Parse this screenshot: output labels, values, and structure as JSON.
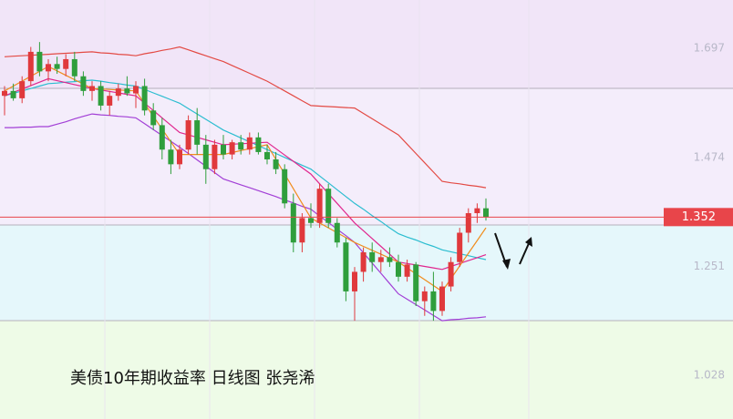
{
  "chart_data": {
    "type": "candlestick",
    "title": "美债10年期收益率 日线图 张尧浠",
    "categories": [
      null,
      null,
      null,
      null,
      null,
      null,
      null,
      null,
      null,
      null,
      null,
      null,
      null,
      null,
      null,
      null,
      null,
      null,
      null,
      null,
      null,
      null,
      null,
      null,
      null,
      null,
      null,
      null,
      null,
      null,
      null,
      null,
      null,
      null,
      null,
      null,
      null,
      null,
      null,
      null,
      null,
      null,
      null,
      null,
      null,
      null,
      null,
      null,
      null,
      null,
      null,
      null,
      null,
      null,
      null,
      null
    ],
    "open": [
      1.6,
      1.61,
      1.595,
      1.63,
      1.69,
      1.65,
      1.665,
      1.655,
      1.675,
      1.64,
      1.61,
      1.62,
      1.58,
      1.6,
      1.615,
      1.605,
      1.62,
      1.57,
      1.54,
      1.49,
      1.46,
      1.49,
      1.55,
      1.5,
      1.45,
      1.5,
      1.48,
      1.505,
      1.49,
      1.515,
      1.485,
      1.47,
      1.45,
      1.38,
      1.3,
      1.35,
      1.34,
      1.41,
      1.34,
      1.3,
      1.2,
      1.24,
      1.28,
      1.26,
      1.27,
      1.26,
      1.23,
      1.255,
      1.18,
      1.2,
      1.16,
      1.21,
      1.26,
      1.32,
      1.36,
      1.37
    ],
    "high": [
      1.62,
      1.625,
      1.64,
      1.7,
      1.71,
      1.675,
      1.68,
      1.685,
      1.69,
      1.65,
      1.63,
      1.63,
      1.61,
      1.625,
      1.64,
      1.63,
      1.635,
      1.585,
      1.555,
      1.51,
      1.5,
      1.56,
      1.575,
      1.52,
      1.51,
      1.52,
      1.51,
      1.52,
      1.525,
      1.525,
      1.5,
      1.485,
      1.46,
      1.4,
      1.36,
      1.38,
      1.42,
      1.42,
      1.35,
      1.31,
      1.25,
      1.29,
      1.3,
      1.285,
      1.29,
      1.275,
      1.265,
      1.26,
      1.21,
      1.24,
      1.22,
      1.27,
      1.33,
      1.37,
      1.38,
      1.39
    ],
    "low": [
      1.56,
      1.59,
      1.585,
      1.62,
      1.64,
      1.63,
      1.645,
      1.64,
      1.63,
      1.6,
      1.59,
      1.57,
      1.56,
      1.59,
      1.6,
      1.575,
      1.56,
      1.53,
      1.47,
      1.44,
      1.45,
      1.48,
      1.48,
      1.42,
      1.44,
      1.47,
      1.47,
      1.48,
      1.48,
      1.48,
      1.46,
      1.44,
      1.37,
      1.28,
      1.28,
      1.33,
      1.33,
      1.33,
      1.29,
      1.18,
      1.14,
      1.22,
      1.24,
      1.24,
      1.25,
      1.22,
      1.22,
      1.17,
      1.15,
      1.14,
      1.15,
      1.2,
      1.25,
      1.3,
      1.34,
      1.345
    ],
    "close": [
      1.61,
      1.595,
      1.63,
      1.69,
      1.65,
      1.665,
      1.655,
      1.675,
      1.64,
      1.61,
      1.62,
      1.58,
      1.6,
      1.615,
      1.605,
      1.62,
      1.57,
      1.54,
      1.49,
      1.46,
      1.49,
      1.55,
      1.5,
      1.45,
      1.5,
      1.48,
      1.505,
      1.49,
      1.515,
      1.485,
      1.47,
      1.45,
      1.38,
      1.3,
      1.35,
      1.34,
      1.41,
      1.34,
      1.3,
      1.2,
      1.24,
      1.28,
      1.26,
      1.27,
      1.26,
      1.23,
      1.255,
      1.18,
      1.2,
      1.16,
      1.21,
      1.26,
      1.32,
      1.36,
      1.37,
      1.352
    ],
    "up_color": "#e0393c",
    "down_color": "#2f9e3c",
    "series": [
      {
        "color": "#e34a44",
        "values": [
          1.68,
          1.681,
          1.682,
          1.683,
          1.684,
          1.685,
          1.686,
          1.687,
          1.688,
          1.689,
          1.69,
          1.688,
          1.687,
          1.685,
          1.684,
          1.682,
          1.686,
          1.689,
          1.693,
          1.696,
          1.7,
          1.694,
          1.688,
          1.682,
          1.676,
          1.67,
          1.662,
          1.654,
          1.646,
          1.638,
          1.63,
          1.62,
          1.61,
          1.6,
          1.59,
          1.58,
          1.579,
          1.578,
          1.577,
          1.576,
          1.575,
          1.564,
          1.553,
          1.542,
          1.531,
          1.52,
          1.501,
          1.482,
          1.463,
          1.444,
          1.425,
          1.422,
          1.42,
          1.417,
          1.415,
          1.412
        ]
      },
      {
        "color": "#a23fd6",
        "values": [
          1.535,
          1.535,
          1.536,
          1.536,
          1.537,
          1.537,
          1.542,
          1.547,
          1.553,
          1.558,
          1.563,
          1.561,
          1.56,
          1.558,
          1.557,
          1.555,
          1.543,
          1.531,
          1.519,
          1.507,
          1.495,
          1.482,
          1.469,
          1.456,
          1.443,
          1.43,
          1.424,
          1.418,
          1.412,
          1.406,
          1.4,
          1.394,
          1.387,
          1.381,
          1.374,
          1.368,
          1.354,
          1.341,
          1.327,
          1.314,
          1.3,
          1.279,
          1.258,
          1.237,
          1.216,
          1.195,
          1.184,
          1.173,
          1.162,
          1.151,
          1.14,
          1.142,
          1.143,
          1.145,
          1.146,
          1.148
        ]
      },
      {
        "color": "#2bbdd0",
        "values": [
          1.6,
          1.605,
          1.61,
          1.615,
          1.62,
          1.625,
          1.626,
          1.628,
          1.629,
          1.631,
          1.632,
          1.63,
          1.627,
          1.625,
          1.622,
          1.62,
          1.613,
          1.606,
          1.599,
          1.592,
          1.585,
          1.574,
          1.563,
          1.552,
          1.541,
          1.53,
          1.522,
          1.514,
          1.506,
          1.498,
          1.49,
          1.482,
          1.474,
          1.466,
          1.458,
          1.45,
          1.436,
          1.422,
          1.408,
          1.394,
          1.38,
          1.368,
          1.355,
          1.343,
          1.33,
          1.318,
          1.311,
          1.305,
          1.298,
          1.292,
          1.285,
          1.281,
          1.277,
          1.273,
          1.269,
          1.265
        ]
      },
      {
        "color": "#e0268e",
        "values": [
          1.6,
          1.607,
          1.614,
          1.621,
          1.628,
          1.635,
          1.631,
          1.627,
          1.623,
          1.619,
          1.615,
          1.612,
          1.609,
          1.606,
          1.603,
          1.6,
          1.585,
          1.57,
          1.555,
          1.54,
          1.525,
          1.52,
          1.515,
          1.51,
          1.505,
          1.5,
          1.501,
          1.502,
          1.503,
          1.504,
          1.505,
          1.492,
          1.479,
          1.466,
          1.453,
          1.44,
          1.42,
          1.4,
          1.38,
          1.36,
          1.34,
          1.324,
          1.308,
          1.292,
          1.276,
          1.26,
          1.257,
          1.254,
          1.251,
          1.248,
          1.245,
          1.251,
          1.257,
          1.263,
          1.269,
          1.275
        ]
      },
      {
        "color": "#f08c1c",
        "values": [
          1.61,
          1.62,
          1.63,
          1.64,
          1.65,
          1.66,
          1.651,
          1.642,
          1.633,
          1.624,
          1.615,
          1.614,
          1.613,
          1.612,
          1.611,
          1.61,
          1.584,
          1.558,
          1.532,
          1.506,
          1.48,
          1.48,
          1.48,
          1.48,
          1.48,
          1.48,
          1.484,
          1.488,
          1.492,
          1.496,
          1.5,
          1.47,
          1.44,
          1.41,
          1.38,
          1.35,
          1.34,
          1.33,
          1.32,
          1.31,
          1.3,
          1.292,
          1.284,
          1.276,
          1.268,
          1.26,
          1.248,
          1.236,
          1.224,
          1.212,
          1.2,
          1.226,
          1.252,
          1.278,
          1.304,
          1.33
        ]
      }
    ],
    "last_price": 1.352,
    "last_price_color": "#e8454a",
    "ylim": [
      0.939,
      1.796
    ],
    "yticks": [
      1.028,
      1.251,
      1.474,
      1.697
    ]
  }
}
